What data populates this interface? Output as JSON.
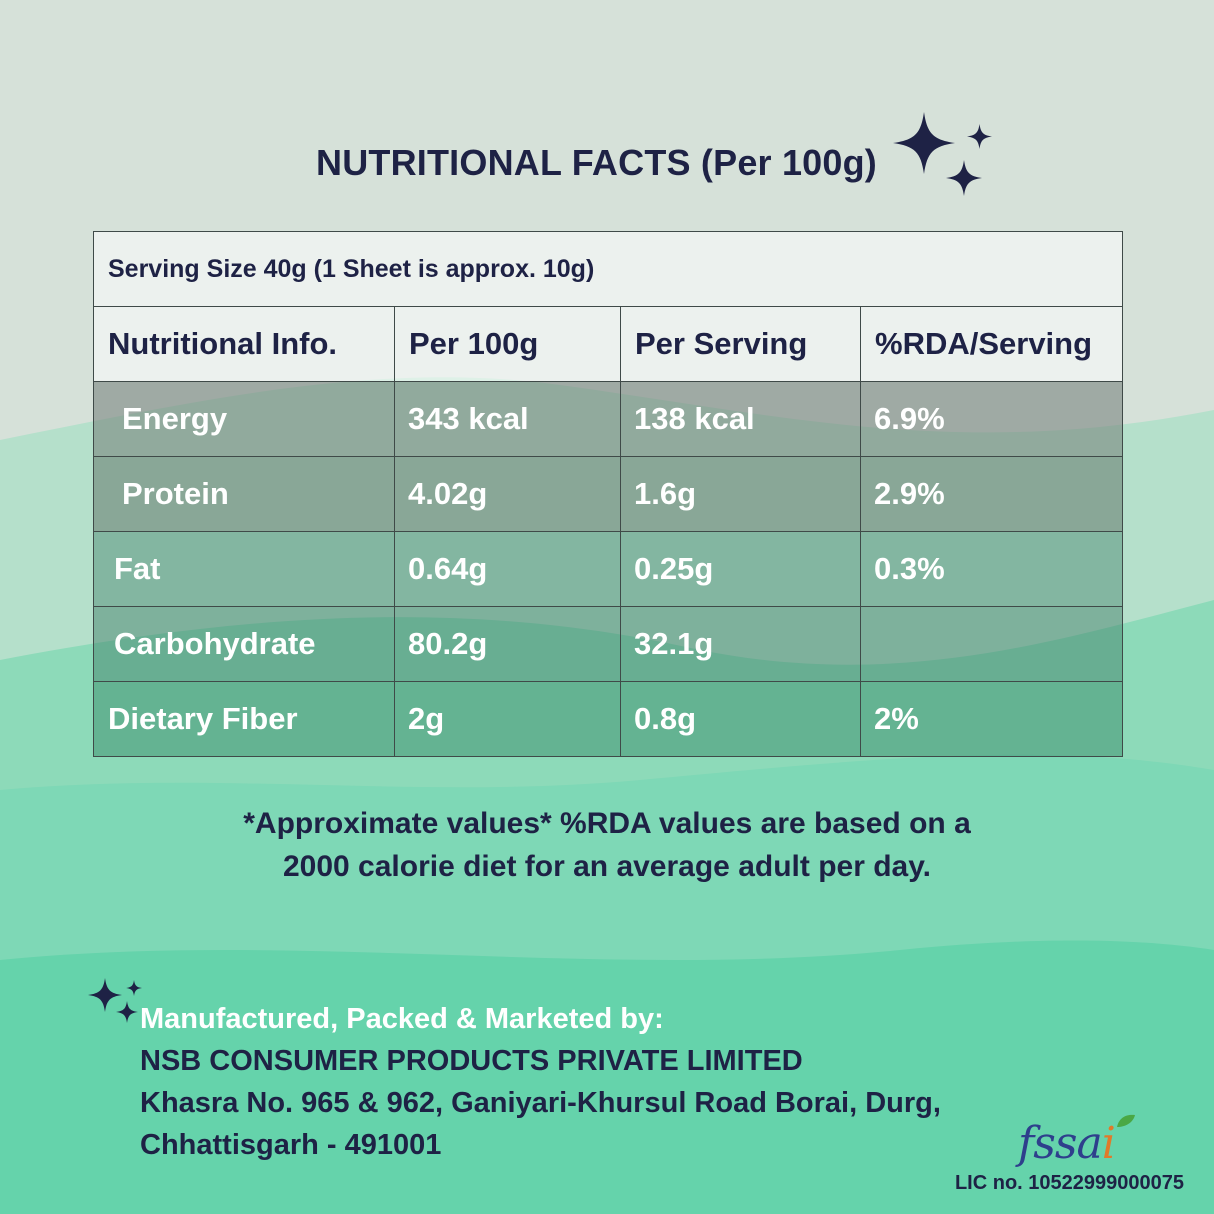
{
  "title": "NUTRITIONAL FACTS (Per 100g)",
  "table": {
    "serving_size": "Serving Size 40g (1 Sheet is approx. 10g)",
    "headers": [
      "Nutritional Info.",
      "Per 100g",
      "Per Serving",
      "%RDA/Serving"
    ],
    "rows": [
      {
        "name": "Energy",
        "per_100g": "343 kcal",
        "per_serving": "138 kcal",
        "rda": "6.9%"
      },
      {
        "name": "Protein",
        "per_100g": "4.02g",
        "per_serving": "1.6g",
        "rda": "2.9%"
      },
      {
        "name": "Fat",
        "per_100g": "0.64g",
        "per_serving": "0.25g",
        "rda": "0.3%"
      },
      {
        "name": "Carbohydrate",
        "per_100g": "80.2g",
        "per_serving": "32.1g",
        "rda": ""
      },
      {
        "name": "Dietary Fiber",
        "per_100g": "2g",
        "per_serving": "0.8g",
        "rda": "2%"
      }
    ]
  },
  "note": {
    "line1": "*Approximate values* %RDA values are based on a",
    "line2": "2000 calorie diet for an average adult per day."
  },
  "manufacturer": {
    "heading": "Manufactured, Packed & Marketed by:",
    "company": "NSB CONSUMER PRODUCTS PRIVATE LIMITED",
    "address_line1": "Khasra No. 965 & 962, Ganiyari-Khursul Road Borai, Durg,",
    "address_line2": "Chhattisgarh - 491001"
  },
  "fssai": {
    "logo_text": "fssa",
    "logo_i": "i",
    "license": "LIC no. 10522999000075"
  },
  "icons": [
    "sparkle-icon",
    "fssai-logo"
  ],
  "colors": {
    "text_dark": "#1e2245",
    "background_top": "#d6e1d9",
    "background_bottom": "#5fd3a9"
  }
}
